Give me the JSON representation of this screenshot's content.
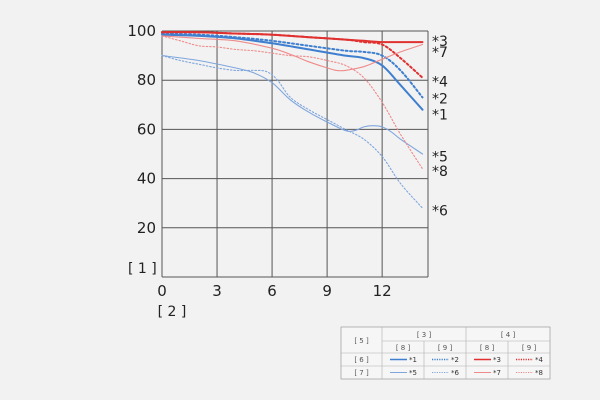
{
  "chart_data": {
    "type": "line",
    "x_ticks": [
      "0",
      "3",
      "6",
      "9",
      "12"
    ],
    "y_ticks": [
      "20",
      "40",
      "60",
      "80",
      "100"
    ],
    "xlim": [
      0,
      14.5
    ],
    "ylim": [
      0,
      100
    ],
    "xlabel": "[ 2 ]",
    "ylabel": "[ 1 ]",
    "grid": true,
    "legend_position": "bottom-right",
    "series": [
      {
        "label": "*1",
        "color": "#3f7fd0",
        "style": "solid",
        "width": 2.0,
        "x": [
          0,
          2,
          4,
          6,
          8,
          10,
          11,
          12,
          13,
          14.2
        ],
        "y": [
          98.5,
          98,
          97,
          95,
          92.5,
          90,
          89,
          86,
          78,
          68
        ]
      },
      {
        "label": "*2",
        "color": "#3f7fd0",
        "style": "dotted",
        "width": 2.0,
        "x": [
          0,
          2,
          4,
          6,
          8,
          10,
          11,
          12,
          13,
          14.2
        ],
        "y": [
          99,
          98.5,
          97.5,
          96,
          94,
          92,
          91.5,
          90,
          84,
          73
        ]
      },
      {
        "label": "*3",
        "color": "#e03030",
        "style": "solid",
        "width": 2.0,
        "x": [
          0,
          2,
          4,
          6,
          8,
          10,
          11,
          12,
          13,
          14.2
        ],
        "y": [
          99.5,
          99.5,
          99,
          98.5,
          97.5,
          96.5,
          96,
          95.5,
          95.5,
          95.5
        ]
      },
      {
        "label": "*4",
        "color": "#e03030",
        "style": "dotted",
        "width": 2.0,
        "x": [
          0,
          2,
          4,
          6,
          8,
          10,
          11,
          12,
          13,
          14.2
        ],
        "y": [
          99.5,
          99.5,
          99,
          98.5,
          97.5,
          96.5,
          95.5,
          94.5,
          89,
          81
        ]
      },
      {
        "label": "*5",
        "color": "#7fa6dd",
        "style": "solid",
        "width": 1.1,
        "x": [
          0,
          2,
          4,
          5,
          6,
          7,
          8,
          9,
          10,
          10.5,
          11,
          11.5,
          12,
          12.5,
          13,
          14.2
        ],
        "y": [
          90,
          88,
          85,
          83,
          79,
          72,
          67,
          63,
          59.5,
          59.5,
          61,
          61.5,
          61,
          59,
          56,
          50
        ]
      },
      {
        "label": "*6",
        "color": "#7fa6dd",
        "style": "dotted",
        "width": 1.1,
        "x": [
          0,
          1,
          2,
          3,
          4,
          5,
          5.7,
          6.3,
          7,
          8,
          9,
          10,
          11,
          12,
          13,
          14.2
        ],
        "y": [
          90,
          88,
          86.5,
          85,
          84,
          84,
          83.5,
          80,
          73,
          68,
          64,
          60,
          56,
          49,
          38,
          28
        ]
      },
      {
        "label": "*7",
        "color": "#f08a8a",
        "style": "solid",
        "width": 1.1,
        "x": [
          0,
          2,
          4,
          6,
          7,
          8,
          9,
          9.5,
          10,
          11,
          12,
          13,
          14.2
        ],
        "y": [
          98,
          97,
          96,
          93,
          90.5,
          87.5,
          85,
          84,
          84,
          85.5,
          88.5,
          91.5,
          94.5
        ]
      },
      {
        "label": "*8",
        "color": "#f08a8a",
        "style": "dotted",
        "width": 1.1,
        "x": [
          0,
          1,
          2,
          3,
          4,
          5,
          6,
          7,
          8,
          9,
          10,
          11,
          12,
          13,
          14.2
        ],
        "y": [
          98,
          96,
          94,
          93.5,
          92.5,
          92,
          91,
          90,
          89.5,
          88,
          86,
          81,
          71,
          58,
          44
        ]
      }
    ],
    "right_labels": [
      {
        "text": "*3",
        "y": 96
      },
      {
        "text": "*7",
        "y": 91.5
      },
      {
        "text": "*4",
        "y": 79.5
      },
      {
        "text": "*2",
        "y": 72.5
      },
      {
        "text": "*1",
        "y": 66
      },
      {
        "text": "*5",
        "y": 49
      },
      {
        "text": "*8",
        "y": 43
      },
      {
        "text": "*6",
        "y": 27
      }
    ],
    "legend": {
      "corner": "[ 5 ]",
      "groups": [
        "[ 3 ]",
        "[ 4 ]"
      ],
      "subheaders": [
        "[ 8 ]",
        "[ 9 ]",
        "[ 8 ]",
        "[ 9 ]"
      ],
      "rows": [
        {
          "label": "[ 6 ]",
          "entries": [
            "*1",
            "*2",
            "*3",
            "*4"
          ]
        },
        {
          "label": "[ 7 ]",
          "entries": [
            "*5",
            "*6",
            "*7",
            "*8"
          ]
        }
      ]
    }
  }
}
